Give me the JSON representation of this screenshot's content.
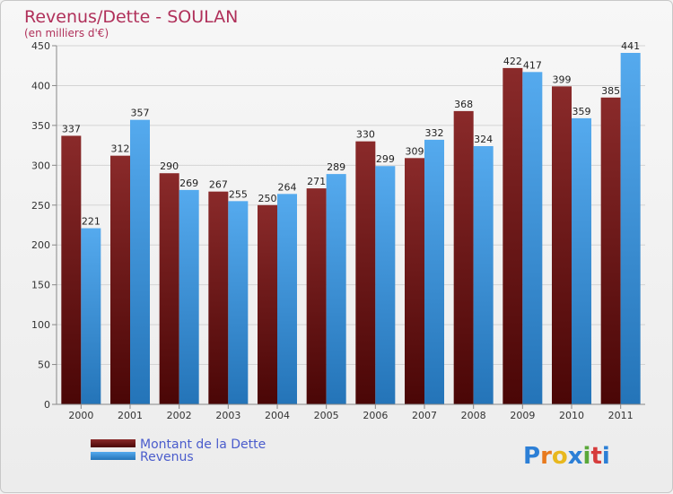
{
  "chart_data": {
    "type": "bar",
    "title": "Revenus/Dette - SOULAN",
    "subtitle": "(en milliers d'€)",
    "categories": [
      "2000",
      "2001",
      "2002",
      "2003",
      "2004",
      "2005",
      "2006",
      "2007",
      "2008",
      "2009",
      "2010",
      "2011"
    ],
    "series": [
      {
        "name": "Montant de la Dette",
        "color": "#7a1a1a",
        "values": [
          337,
          312,
          290,
          267,
          250,
          271,
          330,
          309,
          368,
          422,
          399,
          385
        ]
      },
      {
        "name": "Revenus",
        "color": "#3a94dc",
        "values": [
          221,
          357,
          269,
          255,
          264,
          289,
          299,
          332,
          324,
          417,
          359,
          441
        ]
      }
    ],
    "ylim": [
      0,
      450
    ],
    "yticks": [
      0,
      50,
      100,
      150,
      200,
      250,
      300,
      350,
      400,
      450
    ],
    "grid": true,
    "legend_placement": "bottom-left"
  },
  "logo": {
    "letters": [
      "P",
      "r",
      "o",
      "x",
      "i",
      "t",
      "i"
    ],
    "colors": [
      "#2c7fd6",
      "#e87a1e",
      "#e8b81e",
      "#2c7fd6",
      "#5aa83a",
      "#d63c3c",
      "#2c7fd6"
    ]
  }
}
